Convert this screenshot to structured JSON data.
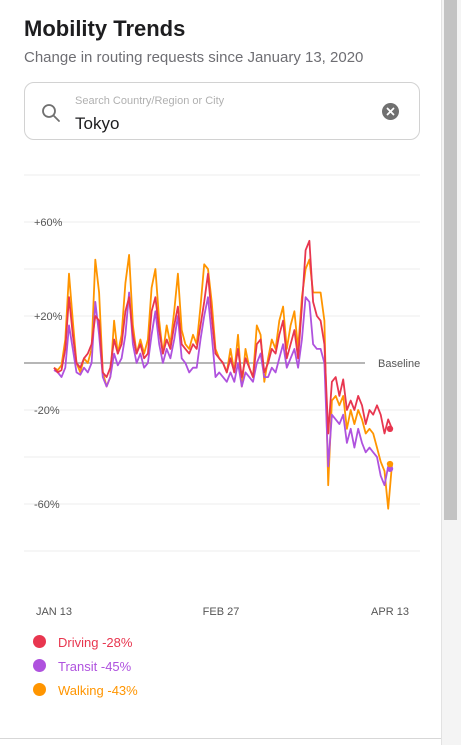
{
  "header": {
    "title": "Mobility Trends",
    "subtitle": "Change in routing requests since January 13, 2020"
  },
  "search": {
    "placeholder": "Search Country/Region or City",
    "value": "Tokyo",
    "icon": "search-icon",
    "clear_icon": "clear-icon"
  },
  "chart_data": {
    "type": "line",
    "x_start": "2020-01-13",
    "x_end": "2020-04-13",
    "x_ticks": [
      "JAN 13",
      "FEB 27",
      "APR 13"
    ],
    "y_ticks": [
      {
        "value": 60,
        "label": "+60%"
      },
      {
        "value": 20,
        "label": "+20%"
      },
      {
        "value": -20,
        "label": "-20%"
      },
      {
        "value": -60,
        "label": "-60%"
      }
    ],
    "ylim": [
      -80,
      80
    ],
    "baseline_value": 0,
    "baseline_label": "Baseline",
    "grid": true,
    "legend_position": "bottom-left",
    "series": [
      {
        "name": "Driving",
        "value_label": "Driving -28%",
        "color": "#e8364f",
        "values": [
          -2,
          -4,
          -3,
          6,
          28,
          12,
          0,
          -2,
          2,
          4,
          8,
          20,
          18,
          -4,
          -6,
          -2,
          10,
          4,
          8,
          22,
          28,
          12,
          4,
          8,
          2,
          4,
          22,
          28,
          14,
          4,
          10,
          6,
          16,
          24,
          8,
          6,
          4,
          8,
          6,
          16,
          26,
          38,
          20,
          4,
          2,
          0,
          -4,
          2,
          -4,
          6,
          -6,
          2,
          -2,
          -6,
          8,
          10,
          -4,
          0,
          6,
          4,
          12,
          18,
          2,
          8,
          14,
          2,
          24,
          48,
          52,
          26,
          20,
          18,
          8,
          -30,
          -8,
          -6,
          -14,
          -7,
          -20,
          -16,
          -20,
          -14,
          -18,
          -26,
          -20,
          -22,
          -18,
          -22,
          -30,
          -24,
          -28
        ],
        "final": -28
      },
      {
        "name": "Transit",
        "value_label": "Transit -45%",
        "color": "#af52de",
        "values": [
          -3,
          -4,
          -6,
          -2,
          16,
          6,
          -4,
          -5,
          -2,
          -4,
          0,
          26,
          12,
          -6,
          -10,
          -6,
          4,
          -1,
          2,
          12,
          30,
          8,
          0,
          4,
          -2,
          0,
          12,
          22,
          8,
          0,
          6,
          2,
          10,
          20,
          2,
          0,
          -4,
          -2,
          -2,
          10,
          20,
          28,
          12,
          -6,
          -4,
          -6,
          -8,
          -4,
          -8,
          0,
          -10,
          -4,
          -6,
          -8,
          0,
          4,
          -6,
          -6,
          -2,
          -4,
          2,
          8,
          -2,
          2,
          6,
          -2,
          10,
          28,
          26,
          8,
          6,
          6,
          0,
          -44,
          -22,
          -24,
          -26,
          -22,
          -34,
          -28,
          -36,
          -28,
          -34,
          -38,
          -36,
          -38,
          -40,
          -48,
          -52,
          -44,
          -45
        ],
        "final": -45
      },
      {
        "name": "Walking",
        "value_label": "Walking -43%",
        "color": "#ff9500",
        "values": [
          -2,
          -3,
          -1,
          10,
          38,
          18,
          0,
          -4,
          2,
          0,
          6,
          44,
          30,
          -4,
          -10,
          -6,
          18,
          4,
          12,
          34,
          46,
          16,
          4,
          10,
          4,
          10,
          32,
          40,
          18,
          4,
          16,
          8,
          22,
          38,
          14,
          8,
          6,
          12,
          8,
          24,
          42,
          40,
          26,
          6,
          2,
          0,
          -4,
          6,
          -4,
          12,
          -10,
          6,
          -2,
          -6,
          16,
          12,
          -8,
          2,
          10,
          6,
          18,
          24,
          6,
          16,
          22,
          6,
          28,
          40,
          44,
          30,
          30,
          30,
          18,
          -52,
          -16,
          -14,
          -18,
          -14,
          -28,
          -20,
          -26,
          -20,
          -24,
          -30,
          -28,
          -30,
          -36,
          -42,
          -46,
          -62,
          -43
        ],
        "final": -43
      }
    ]
  }
}
